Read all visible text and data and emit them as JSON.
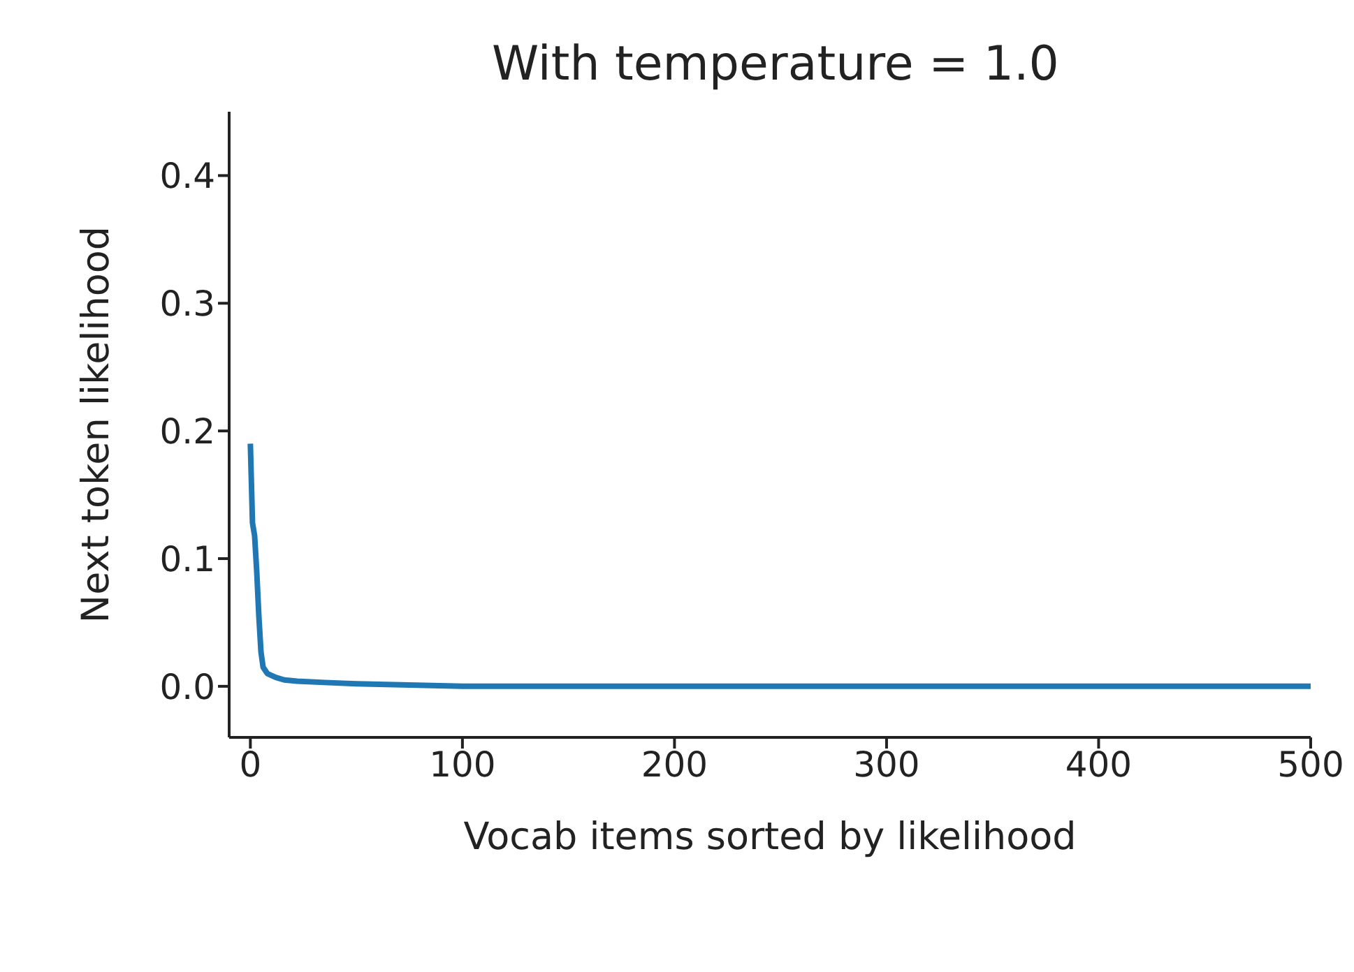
{
  "chart_data": {
    "type": "line",
    "title": "With temperature = 1.0",
    "xlabel": "Vocab items sorted by likelihood",
    "ylabel": "Next token likelihood",
    "x": [
      0,
      1,
      2,
      3,
      4,
      5,
      6,
      8,
      12,
      16,
      22,
      35,
      50,
      75,
      100,
      200,
      300,
      400,
      500
    ],
    "series": [
      {
        "color": "#1f77b4",
        "values": [
          0.19,
          0.128,
          0.118,
          0.09,
          0.055,
          0.027,
          0.015,
          0.01,
          0.007,
          0.005,
          0.004,
          0.003,
          0.002,
          0.001,
          0,
          0,
          0,
          0,
          0
        ]
      }
    ],
    "xlim": [
      -10,
      500
    ],
    "xticks": [
      0,
      100,
      200,
      300,
      400,
      500
    ],
    "ylim": [
      -0.04,
      0.45
    ],
    "yticks": [
      {
        "value": 0,
        "label": "0.0"
      },
      {
        "value": 0.1,
        "label": "0.1"
      },
      {
        "value": 0.2,
        "label": "0.2"
      },
      {
        "value": 0.3,
        "label": "0.3"
      },
      {
        "value": 0.4,
        "label": "0.4"
      }
    ],
    "grid": false,
    "legend": false,
    "marker": "none",
    "line_style": "solid"
  }
}
